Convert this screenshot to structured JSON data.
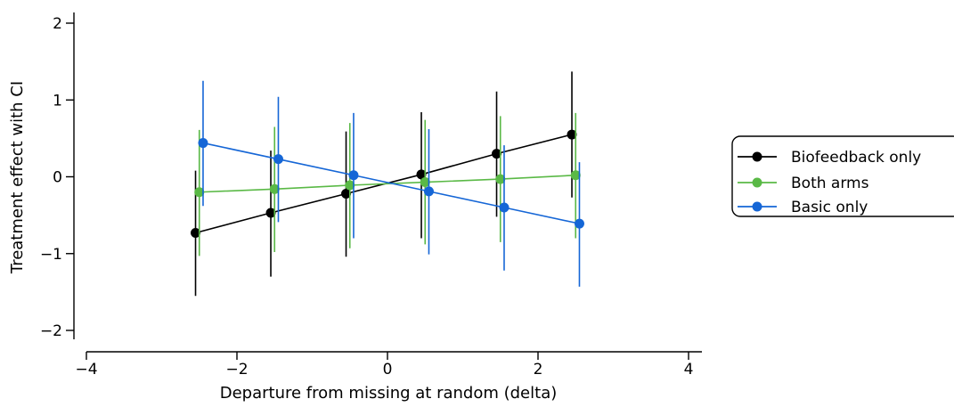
{
  "chart_data": {
    "type": "line",
    "xlabel": "Departure from missing at random (delta)",
    "ylabel": "Treatment effect with CI",
    "xlim": [
      -4,
      4
    ],
    "ylim": [
      -2,
      2
    ],
    "x_ticks": [
      -4,
      -2,
      0,
      2,
      4
    ],
    "y_ticks": [
      -2,
      -1,
      0,
      1,
      2
    ],
    "x_tick_labels": [
      "−4",
      "−2",
      "0",
      "2",
      "4"
    ],
    "y_tick_labels": [
      "−2",
      "−1",
      "0",
      "1",
      "2"
    ],
    "grid": false,
    "legend_position": "right",
    "series": [
      {
        "name": "Biofeedback only",
        "color": "#000000",
        "x": [
          -2.55,
          -1.55,
          -0.55,
          0.45,
          1.45,
          2.45
        ],
        "y": [
          -0.73,
          -0.47,
          -0.22,
          0.03,
          0.3,
          0.55
        ],
        "lower": [
          -1.55,
          -1.3,
          -1.04,
          -0.8,
          -0.52,
          -0.27
        ],
        "upper": [
          0.08,
          0.34,
          0.59,
          0.84,
          1.11,
          1.37
        ]
      },
      {
        "name": "Both arms",
        "color": "#5ab946",
        "x": [
          -2.5,
          -1.5,
          -0.5,
          0.5,
          1.5,
          2.5
        ],
        "y": [
          -0.2,
          -0.16,
          -0.11,
          -0.07,
          -0.03,
          0.02
        ],
        "lower": [
          -1.03,
          -0.98,
          -0.93,
          -0.88,
          -0.85,
          -0.8
        ],
        "upper": [
          0.61,
          0.65,
          0.7,
          0.74,
          0.79,
          0.83
        ]
      },
      {
        "name": "Basic only",
        "color": "#1566d6",
        "x": [
          -2.45,
          -1.45,
          -0.45,
          0.55,
          1.55,
          2.55
        ],
        "y": [
          0.44,
          0.23,
          0.02,
          -0.19,
          -0.4,
          -0.61
        ],
        "lower": [
          -0.38,
          -0.59,
          -0.8,
          -1.01,
          -1.22,
          -1.43
        ],
        "upper": [
          1.25,
          1.04,
          0.83,
          0.62,
          0.41,
          0.19
        ]
      }
    ]
  }
}
